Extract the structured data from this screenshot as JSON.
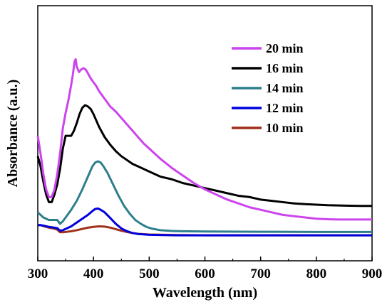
{
  "chart_data": {
    "type": "line",
    "xlabel": "Wavelength (nm)",
    "ylabel": "Absorbance (a.u.)",
    "xlim": [
      300,
      900
    ],
    "ylim": [
      0,
      1
    ],
    "xticks": [
      300,
      400,
      500,
      600,
      700,
      800,
      900
    ],
    "yticks_shown": false,
    "grid": false,
    "legend_position": "top-right",
    "series": [
      {
        "name": "20 min",
        "color": "#cc44ee",
        "points": [
          [
            300,
            0.49
          ],
          [
            305,
            0.42
          ],
          [
            310,
            0.34
          ],
          [
            315,
            0.28
          ],
          [
            320,
            0.25
          ],
          [
            325,
            0.25
          ],
          [
            330,
            0.28
          ],
          [
            335,
            0.34
          ],
          [
            340,
            0.42
          ],
          [
            345,
            0.52
          ],
          [
            350,
            0.58
          ],
          [
            355,
            0.63
          ],
          [
            360,
            0.69
          ],
          [
            363,
            0.73
          ],
          [
            366,
            0.78
          ],
          [
            368,
            0.79
          ],
          [
            370,
            0.76
          ],
          [
            374,
            0.74
          ],
          [
            378,
            0.75
          ],
          [
            382,
            0.755
          ],
          [
            386,
            0.75
          ],
          [
            390,
            0.735
          ],
          [
            395,
            0.715
          ],
          [
            400,
            0.7
          ],
          [
            405,
            0.685
          ],
          [
            410,
            0.665
          ],
          [
            415,
            0.65
          ],
          [
            420,
            0.635
          ],
          [
            425,
            0.62
          ],
          [
            430,
            0.605
          ],
          [
            435,
            0.595
          ],
          [
            440,
            0.585
          ],
          [
            450,
            0.56
          ],
          [
            460,
            0.535
          ],
          [
            470,
            0.51
          ],
          [
            480,
            0.485
          ],
          [
            490,
            0.46
          ],
          [
            500,
            0.44
          ],
          [
            520,
            0.4
          ],
          [
            540,
            0.365
          ],
          [
            560,
            0.335
          ],
          [
            580,
            0.305
          ],
          [
            600,
            0.28
          ],
          [
            620,
            0.26
          ],
          [
            640,
            0.24
          ],
          [
            660,
            0.225
          ],
          [
            680,
            0.21
          ],
          [
            700,
            0.2
          ],
          [
            720,
            0.19
          ],
          [
            740,
            0.18
          ],
          [
            760,
            0.175
          ],
          [
            780,
            0.17
          ],
          [
            800,
            0.165
          ],
          [
            820,
            0.163
          ],
          [
            840,
            0.162
          ],
          [
            860,
            0.162
          ],
          [
            880,
            0.162
          ],
          [
            900,
            0.162
          ]
        ]
      },
      {
        "name": "16 min",
        "color": "#000000",
        "points": [
          [
            300,
            0.41
          ],
          [
            305,
            0.37
          ],
          [
            310,
            0.31
          ],
          [
            315,
            0.26
          ],
          [
            320,
            0.23
          ],
          [
            325,
            0.23
          ],
          [
            330,
            0.26
          ],
          [
            335,
            0.3
          ],
          [
            340,
            0.36
          ],
          [
            345,
            0.44
          ],
          [
            350,
            0.49
          ],
          [
            355,
            0.49
          ],
          [
            360,
            0.49
          ],
          [
            365,
            0.51
          ],
          [
            370,
            0.54
          ],
          [
            375,
            0.575
          ],
          [
            380,
            0.6
          ],
          [
            385,
            0.61
          ],
          [
            390,
            0.605
          ],
          [
            395,
            0.595
          ],
          [
            400,
            0.575
          ],
          [
            405,
            0.55
          ],
          [
            410,
            0.525
          ],
          [
            420,
            0.485
          ],
          [
            430,
            0.455
          ],
          [
            440,
            0.43
          ],
          [
            450,
            0.41
          ],
          [
            460,
            0.395
          ],
          [
            470,
            0.38
          ],
          [
            480,
            0.37
          ],
          [
            490,
            0.36
          ],
          [
            500,
            0.35
          ],
          [
            520,
            0.33
          ],
          [
            540,
            0.32
          ],
          [
            560,
            0.305
          ],
          [
            580,
            0.295
          ],
          [
            600,
            0.285
          ],
          [
            620,
            0.275
          ],
          [
            640,
            0.265
          ],
          [
            660,
            0.255
          ],
          [
            680,
            0.25
          ],
          [
            700,
            0.24
          ],
          [
            720,
            0.235
          ],
          [
            740,
            0.23
          ],
          [
            760,
            0.225
          ],
          [
            780,
            0.222
          ],
          [
            800,
            0.22
          ],
          [
            820,
            0.218
          ],
          [
            840,
            0.217
          ],
          [
            860,
            0.216
          ],
          [
            880,
            0.215
          ],
          [
            900,
            0.215
          ]
        ]
      },
      {
        "name": "14 min",
        "color": "#2e7f8c",
        "points": [
          [
            300,
            0.19
          ],
          [
            305,
            0.18
          ],
          [
            310,
            0.17
          ],
          [
            315,
            0.165
          ],
          [
            320,
            0.16
          ],
          [
            325,
            0.16
          ],
          [
            330,
            0.16
          ],
          [
            335,
            0.16
          ],
          [
            340,
            0.145
          ],
          [
            345,
            0.155
          ],
          [
            350,
            0.17
          ],
          [
            360,
            0.2
          ],
          [
            370,
            0.235
          ],
          [
            380,
            0.28
          ],
          [
            390,
            0.33
          ],
          [
            398,
            0.37
          ],
          [
            403,
            0.385
          ],
          [
            408,
            0.39
          ],
          [
            413,
            0.385
          ],
          [
            418,
            0.37
          ],
          [
            425,
            0.345
          ],
          [
            435,
            0.3
          ],
          [
            445,
            0.255
          ],
          [
            455,
            0.215
          ],
          [
            465,
            0.185
          ],
          [
            475,
            0.16
          ],
          [
            485,
            0.145
          ],
          [
            495,
            0.133
          ],
          [
            505,
            0.126
          ],
          [
            520,
            0.12
          ],
          [
            540,
            0.117
          ],
          [
            560,
            0.116
          ],
          [
            600,
            0.115
          ],
          [
            700,
            0.114
          ],
          [
            800,
            0.113
          ],
          [
            900,
            0.113
          ]
        ]
      },
      {
        "name": "12 min",
        "color": "#0000dd",
        "points": [
          [
            300,
            0.14
          ],
          [
            305,
            0.14
          ],
          [
            310,
            0.138
          ],
          [
            320,
            0.133
          ],
          [
            330,
            0.13
          ],
          [
            335,
            0.128
          ],
          [
            340,
            0.118
          ],
          [
            345,
            0.12
          ],
          [
            350,
            0.125
          ],
          [
            360,
            0.135
          ],
          [
            370,
            0.15
          ],
          [
            380,
            0.165
          ],
          [
            390,
            0.18
          ],
          [
            398,
            0.195
          ],
          [
            403,
            0.203
          ],
          [
            408,
            0.205
          ],
          [
            413,
            0.2
          ],
          [
            420,
            0.19
          ],
          [
            430,
            0.168
          ],
          [
            440,
            0.145
          ],
          [
            450,
            0.127
          ],
          [
            460,
            0.116
          ],
          [
            470,
            0.109
          ],
          [
            480,
            0.105
          ],
          [
            500,
            0.102
          ],
          [
            550,
            0.1
          ],
          [
            600,
            0.1
          ],
          [
            700,
            0.1
          ],
          [
            800,
            0.1
          ],
          [
            900,
            0.1
          ]
        ]
      },
      {
        "name": "10 min",
        "color": "#a0301a",
        "points": [
          [
            300,
            0.14
          ],
          [
            305,
            0.14
          ],
          [
            310,
            0.136
          ],
          [
            320,
            0.13
          ],
          [
            330,
            0.126
          ],
          [
            335,
            0.122
          ],
          [
            340,
            0.112
          ],
          [
            345,
            0.112
          ],
          [
            350,
            0.113
          ],
          [
            360,
            0.116
          ],
          [
            370,
            0.12
          ],
          [
            380,
            0.125
          ],
          [
            390,
            0.13
          ],
          [
            400,
            0.133
          ],
          [
            410,
            0.135
          ],
          [
            420,
            0.134
          ],
          [
            430,
            0.13
          ],
          [
            440,
            0.124
          ],
          [
            450,
            0.118
          ],
          [
            460,
            0.113
          ],
          [
            470,
            0.109
          ],
          [
            480,
            0.106
          ],
          [
            500,
            0.103
          ],
          [
            550,
            0.101
          ],
          [
            600,
            0.1
          ],
          [
            700,
            0.1
          ],
          [
            800,
            0.1
          ],
          [
            900,
            0.1
          ]
        ]
      }
    ]
  }
}
